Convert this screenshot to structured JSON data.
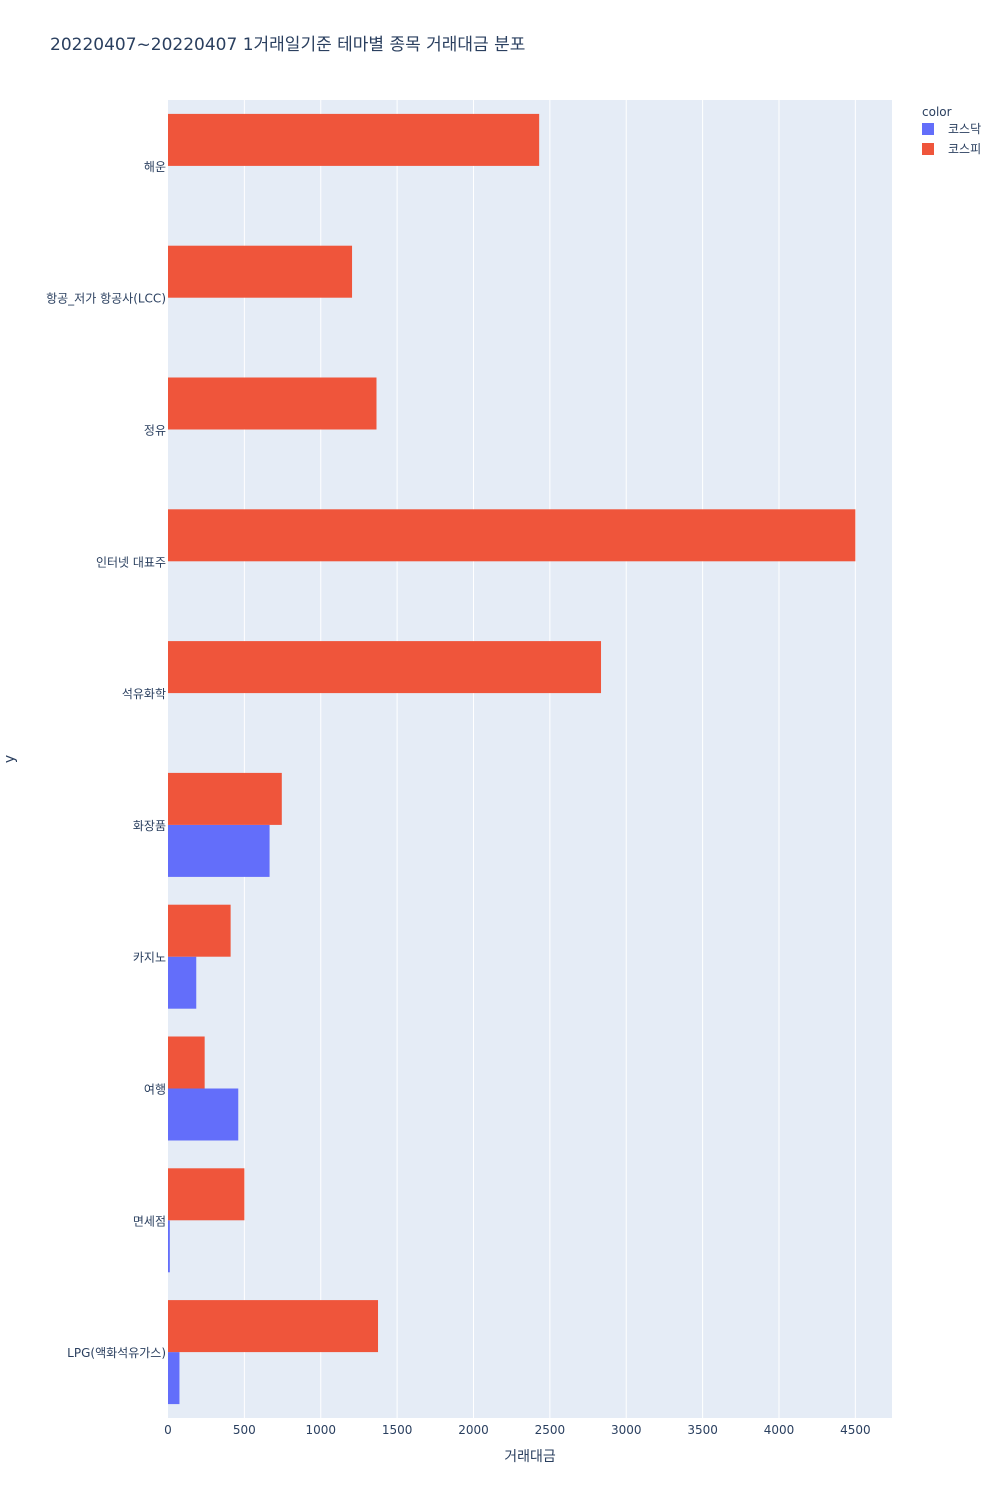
{
  "chart_data": {
    "type": "bar",
    "orientation": "horizontal",
    "barmode": "group",
    "title": "20220407~20220407 1거래일기준 테마별 종목 거래대금 분포",
    "xlabel": "거래대금",
    "ylabel": "y",
    "xlim": [
      0,
      4740
    ],
    "xticks": [
      0,
      500,
      1000,
      1500,
      2000,
      2500,
      3000,
      3500,
      4000,
      4500
    ],
    "grid": true,
    "legend": {
      "title": "color",
      "position": "top-right"
    },
    "categories": [
      "해운",
      "항공_저가 항공사(LCC)",
      "정유",
      "인터넷 대표주",
      "석유화학",
      "화장품",
      "카지노",
      "여행",
      "면세점",
      "LPG(액화석유가스)"
    ],
    "series": [
      {
        "name": "코스닥",
        "color": "#636efa",
        "values": [
          null,
          null,
          null,
          null,
          null,
          665,
          185,
          460,
          12,
          75
        ]
      },
      {
        "name": "코스피",
        "color": "#ef553b",
        "values": [
          2430,
          1205,
          1365,
          4500,
          2835,
          745,
          410,
          240,
          500,
          1375
        ]
      }
    ]
  }
}
